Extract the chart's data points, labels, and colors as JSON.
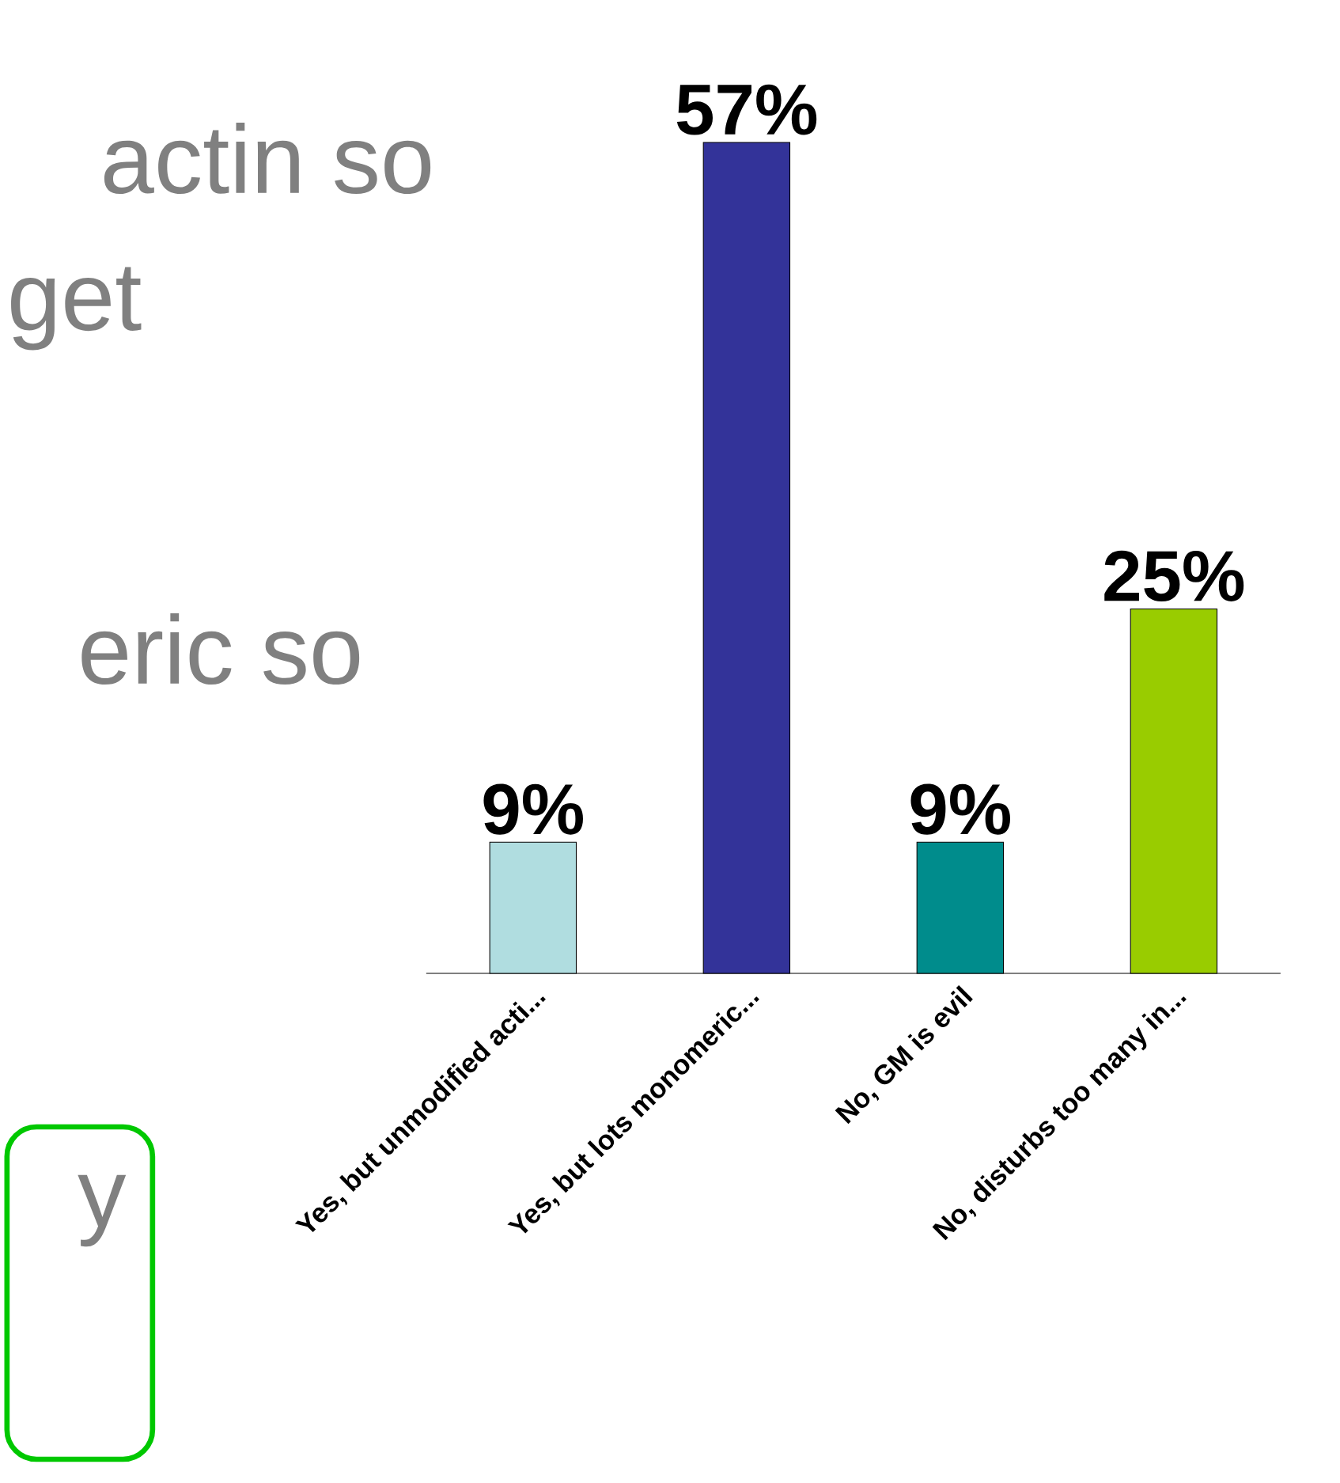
{
  "chart_data": {
    "type": "bar",
    "categories": [
      "Yes, but unmodified acti...",
      "Yes, but lots monomeric...",
      "No, GM is evil",
      "No, disturbs too many in..."
    ],
    "values": [
      9,
      57,
      9,
      25
    ],
    "colors": [
      "#b0dde0",
      "#333399",
      "#008c8c",
      "#99cc00"
    ],
    "value_labels": [
      "9%",
      "57%",
      "9%",
      "25%"
    ],
    "annotations": [
      "actin so",
      "get",
      "eric so",
      "y"
    ]
  }
}
